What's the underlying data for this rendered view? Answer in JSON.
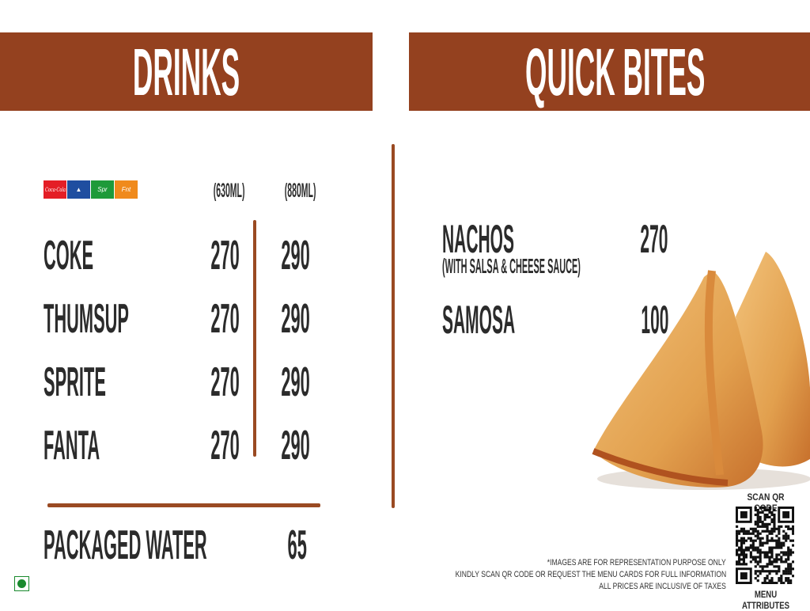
{
  "drinks": {
    "title": "DRINKS",
    "brand_logos": [
      {
        "name": "Coca-Cola",
        "color": "#e41e26"
      },
      {
        "name": "Thums Up",
        "color": "#1f4ea0"
      },
      {
        "name": "Sprite",
        "color": "#1e9a3a"
      },
      {
        "name": "Fanta",
        "color": "#f08a1c"
      }
    ],
    "size_labels": [
      "(630ML)",
      "(880ML)"
    ],
    "items": [
      {
        "name": "COKE",
        "price_630": "270",
        "price_880": "290"
      },
      {
        "name": "THUMSUP",
        "price_630": "270",
        "price_880": "290"
      },
      {
        "name": "SPRITE",
        "price_630": "270",
        "price_880": "290"
      },
      {
        "name": "FANTA",
        "price_630": "270",
        "price_880": "290"
      }
    ],
    "water": {
      "name": "PACKAGED WATER",
      "price": "65"
    }
  },
  "quick_bites": {
    "title": "QUICK BITES",
    "items": [
      {
        "name": "NACHOS",
        "subtitle": "(WITH SALSA & CHEESE SAUCE)",
        "price": "270"
      },
      {
        "name": "SAMOSA",
        "price": "100"
      }
    ]
  },
  "footer": {
    "notes": [
      "*IMAGES ARE FOR REPRESENTATION PURPOSE ONLY",
      "KINDLY SCAN QR CODE OR REQUEST THE MENU CARDS FOR FULL INFORMATION",
      "ALL PRICES ARE INCLUSIVE OF TAXES"
    ],
    "qr_top_label": "SCAN QR CODE",
    "qr_bottom_label": "MENU ATTRIBUTES"
  },
  "colors": {
    "header": "#94411f",
    "divider": "#9a4a22",
    "veg": "#1a8a2e"
  },
  "icons": {
    "veg_mark": "veg-indicator-icon",
    "qr": "qr-code-icon"
  }
}
